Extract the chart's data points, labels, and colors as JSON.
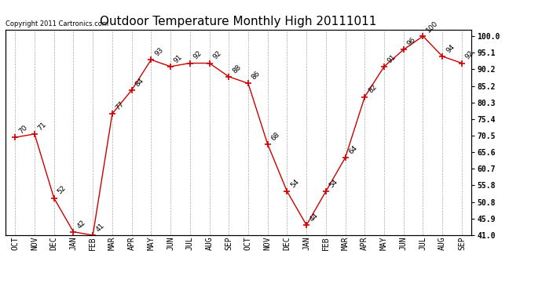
{
  "title": "Outdoor Temperature Monthly High 20111011",
  "copyright_text": "Copyright 2011 Cartronics.com",
  "categories": [
    "OCT",
    "NOV",
    "DEC",
    "JAN",
    "FEB",
    "MAR",
    "APR",
    "MAY",
    "JUN",
    "JUL",
    "AUG",
    "SEP",
    "OCT",
    "NOV",
    "DEC",
    "JAN",
    "FEB",
    "MAR",
    "APR",
    "MAY",
    "JUN",
    "JUL",
    "AUG",
    "SEP"
  ],
  "values": [
    70,
    71,
    52,
    42,
    41,
    77,
    84,
    93,
    91,
    92,
    92,
    88,
    86,
    68,
    54,
    44,
    54,
    64,
    82,
    91,
    96,
    100,
    94,
    92
  ],
  "line_color": "#cc0000",
  "marker_color": "#cc0000",
  "bg_color": "#ffffff",
  "grid_color": "#aaaaaa",
  "ylim": [
    41.0,
    102.0
  ],
  "yticks_right": [
    100.0,
    95.1,
    90.2,
    85.2,
    80.3,
    75.4,
    70.5,
    65.6,
    60.7,
    55.8,
    50.8,
    45.9,
    41.0
  ],
  "ytick_labels": [
    "100.0",
    "95.1",
    "90.2",
    "85.2",
    "80.3",
    "75.4",
    "70.5",
    "65.6",
    "60.7",
    "55.8",
    "50.8",
    "45.9",
    "41.0"
  ],
  "title_fontsize": 11,
  "label_fontsize": 7,
  "annotation_fontsize": 6.5,
  "copyright_fontsize": 6
}
